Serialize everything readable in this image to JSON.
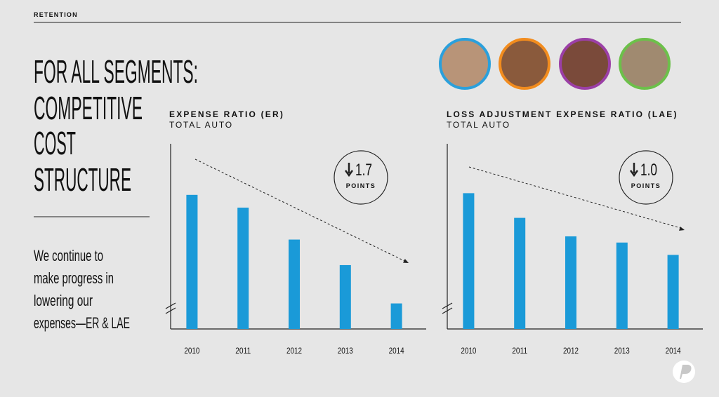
{
  "header": {
    "section": "RETENTION"
  },
  "headline": [
    "FOR ALL SEGMENTS:",
    "COMPETITIVE",
    "COST",
    "STRUCTURE"
  ],
  "body": [
    "We continue to",
    "make progress in",
    "lowering our",
    "expenses—ER & LAE"
  ],
  "chart_data": [
    {
      "type": "bar",
      "title": "EXPENSE RATIO (ER)",
      "subtitle": "TOTAL AUTO",
      "categories": [
        "2010",
        "2011",
        "2012",
        "2013",
        "2014"
      ],
      "values": [
        21.1,
        20.9,
        20.4,
        20.0,
        19.4
      ],
      "color": "#1a9ad8",
      "ylim": [
        19.0,
        21.9
      ],
      "callout": "1.7",
      "callout_unit": "POINTS"
    },
    {
      "type": "bar",
      "title": "LOSS ADJUSTMENT EXPENSE RATIO (LAE)",
      "subtitle": "TOTAL AUTO",
      "categories": [
        "2010",
        "2011",
        "2012",
        "2013",
        "2014"
      ],
      "values": [
        11.2,
        10.8,
        10.5,
        10.4,
        10.2
      ],
      "color": "#1a9ad8",
      "ylim": [
        9.0,
        12.0
      ],
      "callout": "1.0",
      "callout_unit": "POINTS"
    }
  ]
}
